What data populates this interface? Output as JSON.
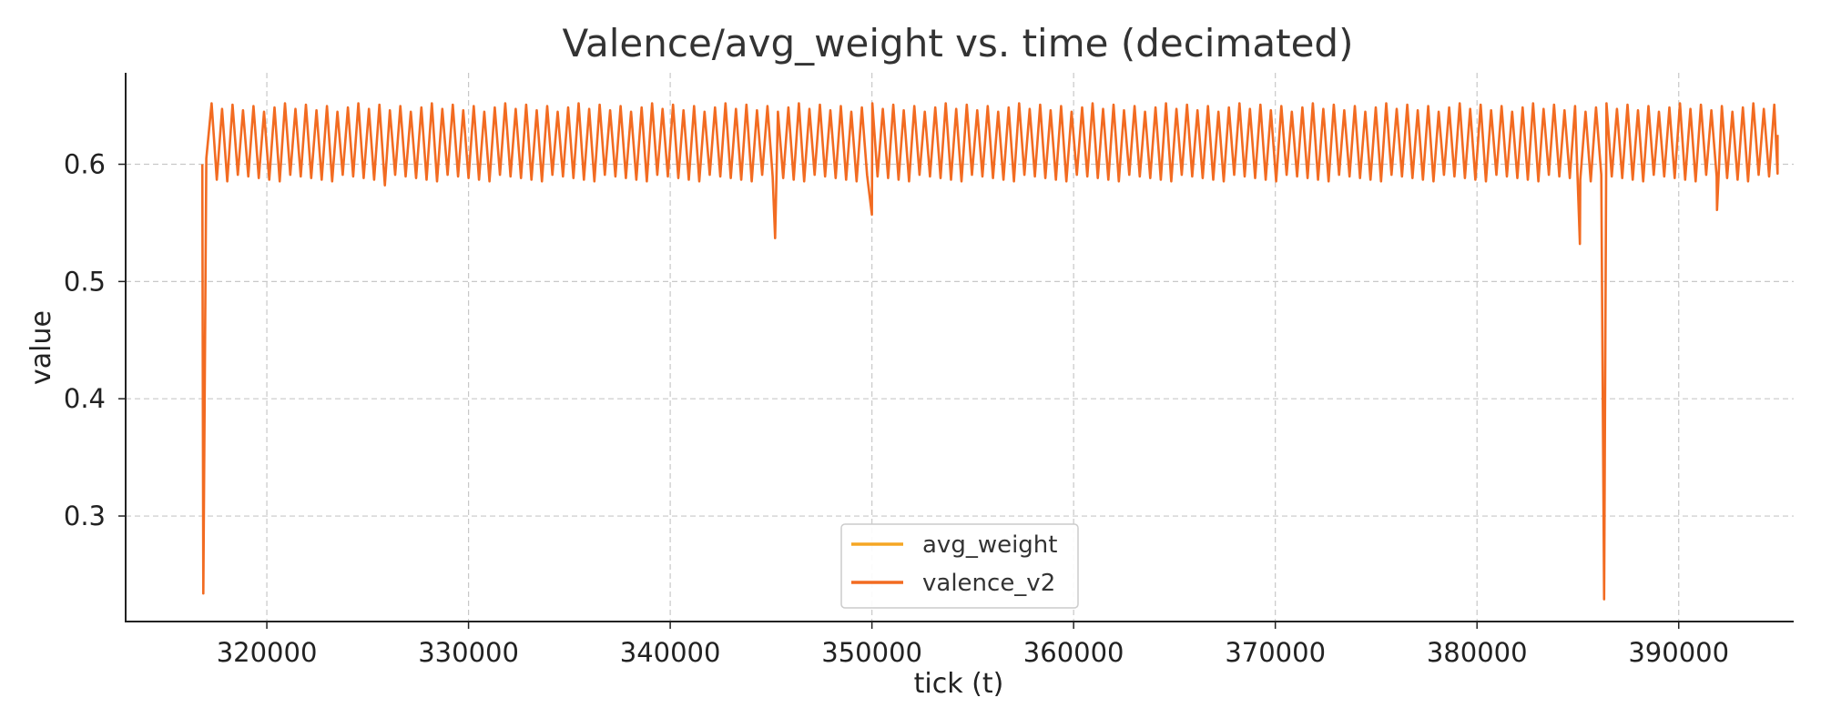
{
  "chart_data": {
    "type": "line",
    "title": "Valence/avg_weight vs. time (decimated)",
    "xlabel": "tick (t)",
    "ylabel": "value",
    "xlim": [
      313000,
      395700
    ],
    "ylim": [
      0.21,
      0.678
    ],
    "xticks": [
      320000,
      330000,
      340000,
      350000,
      360000,
      370000,
      380000,
      390000
    ],
    "yticks": [
      0.3,
      0.4,
      0.5,
      0.6
    ],
    "grid": true,
    "legend_position": "lower-center",
    "series": [
      {
        "name": "avg_weight",
        "color": "#f5a623",
        "x": [],
        "y": []
      },
      {
        "name": "valence_v2",
        "color": "#f26b21",
        "x_start": 316800,
        "x_end": 394900,
        "band_high": 0.652,
        "band_low": 0.591,
        "notable_points": [
          {
            "x": 316800,
            "y": 0.6
          },
          {
            "x": 316850,
            "y": 0.234
          },
          {
            "x": 317000,
            "y": 0.605
          },
          {
            "x": 325850,
            "y": 0.582
          },
          {
            "x": 345200,
            "y": 0.537
          },
          {
            "x": 350000,
            "y": 0.557
          },
          {
            "x": 385100,
            "y": 0.532
          },
          {
            "x": 386300,
            "y": 0.229
          },
          {
            "x": 391900,
            "y": 0.561
          },
          {
            "x": 394900,
            "y": 0.625
          }
        ]
      }
    ]
  }
}
